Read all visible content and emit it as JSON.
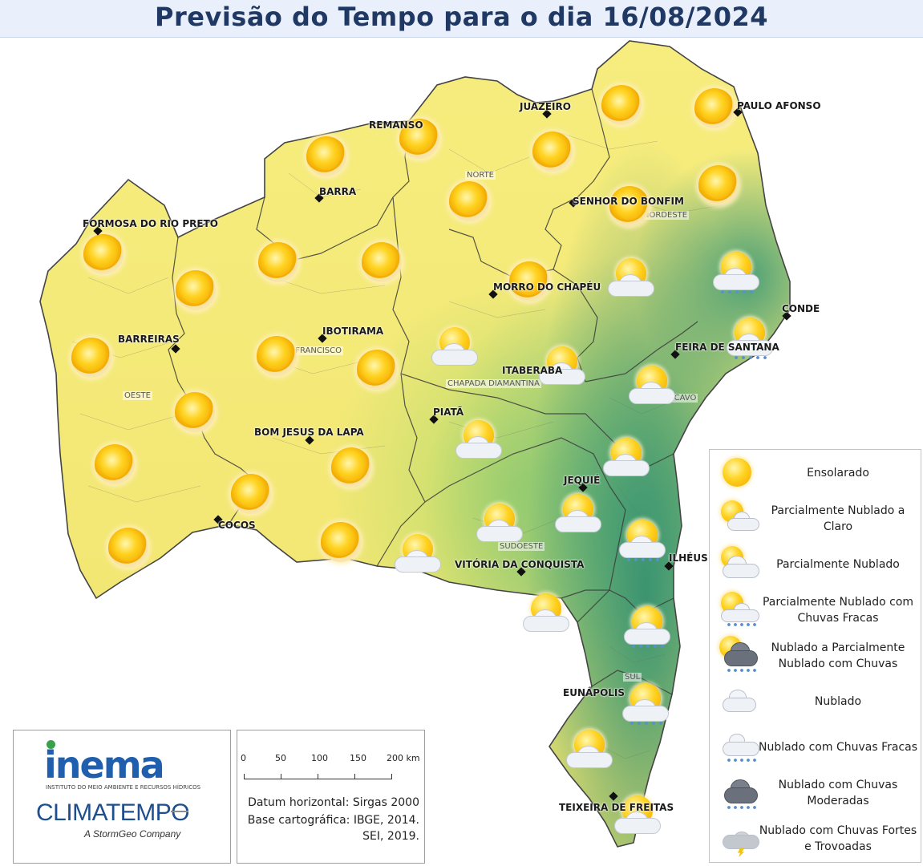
{
  "header": {
    "title": "Previsão do Tempo para o dia 16/08/2024"
  },
  "colors": {
    "header_bg": "#e9f0fb",
    "title": "#1f3864",
    "dry": "#f1e46f",
    "wet": "#3a9a78"
  },
  "regions": {
    "norte": "NORTE",
    "nordeste": "NORDESTE",
    "oeste": "OESTE",
    "sao_francisco": "SÃO FRANCISCO",
    "chapada": "CHAPADA DIAMANTINA",
    "reconcavo": "RECÔNCAVO",
    "sudoeste": "SUDOESTE",
    "sul": "SUL"
  },
  "cities": {
    "juazeiro": "JUAZEIRO",
    "paulo_afonso": "PAULO AFONSO",
    "remanso": "REMANSO",
    "barra": "BARRA",
    "senhor_do_bonfim": "SENHOR DO BONFIM",
    "formosa": "FORMOSA DO RIO PRETO",
    "morro_do_chapeu": "MORRO DO CHAPÉU",
    "conde": "CONDE",
    "barreiras": "BARREIRAS",
    "ibotirama": "IBOTIRAMA",
    "feira": "FEIRA DE SANTANA",
    "itaberaba": "ITABERABA",
    "piata": "PIATÃ",
    "bom_jesus": "BOM JESUS DA LAPA",
    "jequie": "JEQUIÉ",
    "cocos": "COCOS",
    "ilheus": "ILHÉUS",
    "vitoria": "VITÓRIA DA CONQUISTA",
    "eunapolis": "EUNÁPOLIS",
    "teixeira": "TEIXEIRA DE FREITAS"
  },
  "legend": [
    {
      "icon": "sunny-icon",
      "label": "Ensolarado"
    },
    {
      "icon": "partly-cloudy-clear-icon",
      "label": "Parcialmente Nublado a Claro"
    },
    {
      "icon": "partly-cloudy-icon",
      "label": "Parcialmente Nublado"
    },
    {
      "icon": "partly-cloudy-light-rain-icon",
      "label": "Parcialmente Nublado com Chuvas Fracas"
    },
    {
      "icon": "cloudy-partly-rain-icon",
      "label": "Nublado a Parcialmente Nublado com Chuvas"
    },
    {
      "icon": "cloudy-icon",
      "label": "Nublado"
    },
    {
      "icon": "cloudy-light-rain-icon",
      "label": "Nublado com Chuvas Fracas"
    },
    {
      "icon": "cloudy-moderate-rain-icon",
      "label": "Nublado com Chuvas Moderadas"
    },
    {
      "icon": "cloudy-storm-icon",
      "label": "Nublado com Chuvas Fortes e Trovoadas"
    }
  ],
  "logos": {
    "inema": "inema",
    "inema_sub": "INSTITUTO DO MEIO AMBIENTE E RECURSOS HÍDRICOS",
    "climatempo": "CLIMATEMPO",
    "stormgeo": "A StormGeo Company"
  },
  "scale": {
    "ticks": [
      "0",
      "50",
      "100",
      "150",
      "200 km"
    ],
    "datum_line1": "Datum horizontal: Sirgas 2000",
    "datum_line2": "Base cartográfica: IBGE, 2014.",
    "datum_line3": "SEI, 2019."
  }
}
